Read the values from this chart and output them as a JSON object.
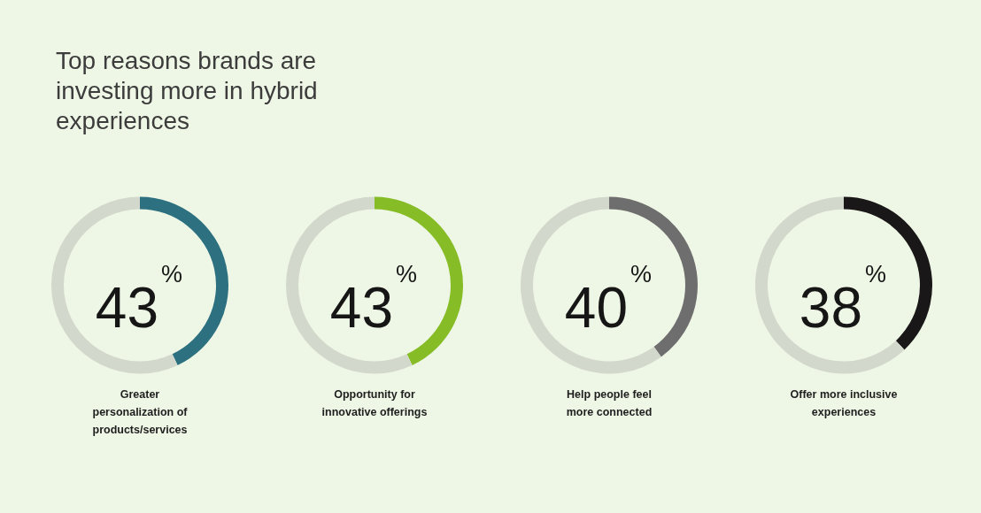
{
  "chart_data": [
    {
      "type": "donut",
      "title": "Top reasons brands are investing more in hybrid experiences",
      "xlabel": "Greater personalization of products/services",
      "categories": [
        null,
        null
      ],
      "values": [
        43,
        57
      ],
      "colors": [
        "#2d7180",
        "#d3d8cc"
      ],
      "annotations": [
        "43$^{%}$"
      ]
    },
    {
      "type": "donut",
      "xlabel": "Opportunity for innovative offerings",
      "categories": [
        null,
        null
      ],
      "values": [
        43,
        57
      ],
      "colors": [
        "#86bc25",
        "#d3d8cc"
      ],
      "annotations": [
        "43$^{%}$"
      ]
    },
    {
      "type": "donut",
      "xlabel": "Help people feel more connected",
      "categories": [
        null,
        null
      ],
      "values": [
        40,
        60
      ],
      "colors": [
        "#6e6e6e",
        "#d3d8cc"
      ],
      "annotations": [
        "40$^{%}$"
      ]
    },
    {
      "type": "donut",
      "xlabel": "Offer more inclusive experiences",
      "categories": [
        null,
        null
      ],
      "values": [
        38,
        62
      ],
      "colors": [
        "#1a1718",
        "#d3d8cc"
      ],
      "annotations": [
        "38$^{%}$"
      ]
    }
  ]
}
